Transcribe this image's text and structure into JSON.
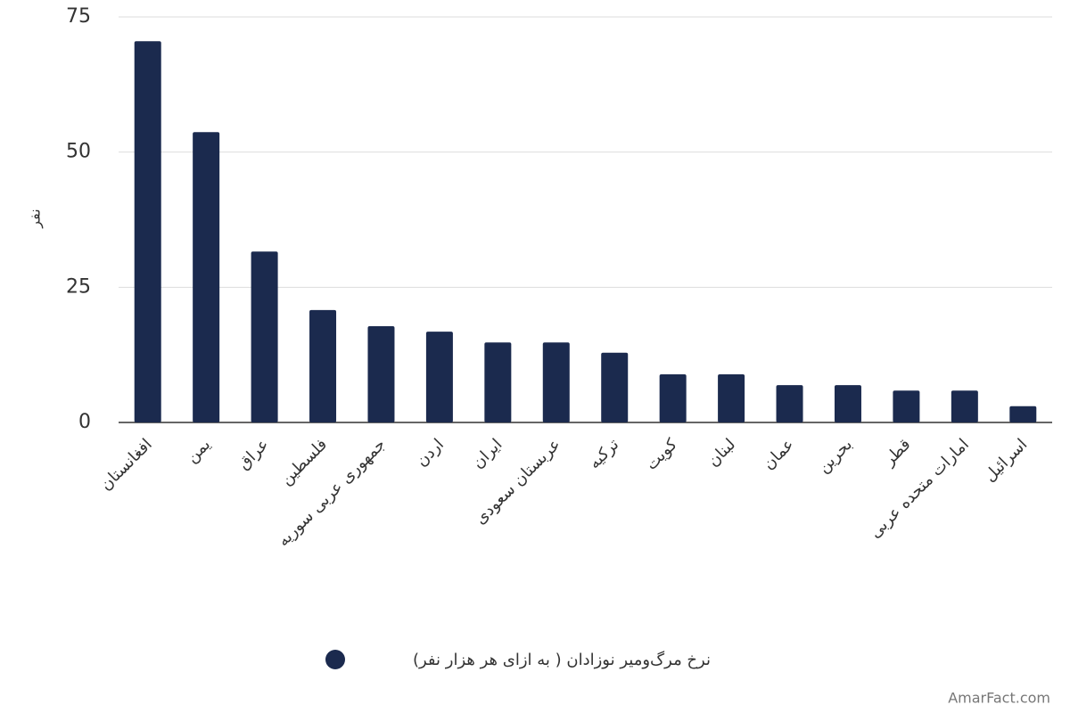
{
  "chart_data": {
    "type": "bar",
    "y_label": "نفر",
    "categories": [
      "افغانستان",
      "یمن",
      "عراق",
      "فلسطین",
      "جمهوری عربی سوریه",
      "اردن",
      "ایران",
      "عربستان سعودی",
      "ترکیه",
      "کویت",
      "لبنان",
      "عمان",
      "بحرین",
      "قطر",
      "امارات متحده عربی",
      "اسرائیل"
    ],
    "series": [
      {
        "name": "نرخ مرگ‌ومیر نوزادان ( به ازای هر هزار نفر)",
        "color": "#1b2a4e",
        "values": [
          70.5,
          53.7,
          31.6,
          20.8,
          17.8,
          16.8,
          14.8,
          14.8,
          12.9,
          8.9,
          8.9,
          6.9,
          6.9,
          5.9,
          5.9,
          3.0
        ]
      }
    ],
    "ylim": [
      0,
      75
    ],
    "yticks": [
      0,
      25,
      50,
      75
    ],
    "grid": true,
    "legend": "bottom",
    "watermark": "AmarFact.com"
  }
}
